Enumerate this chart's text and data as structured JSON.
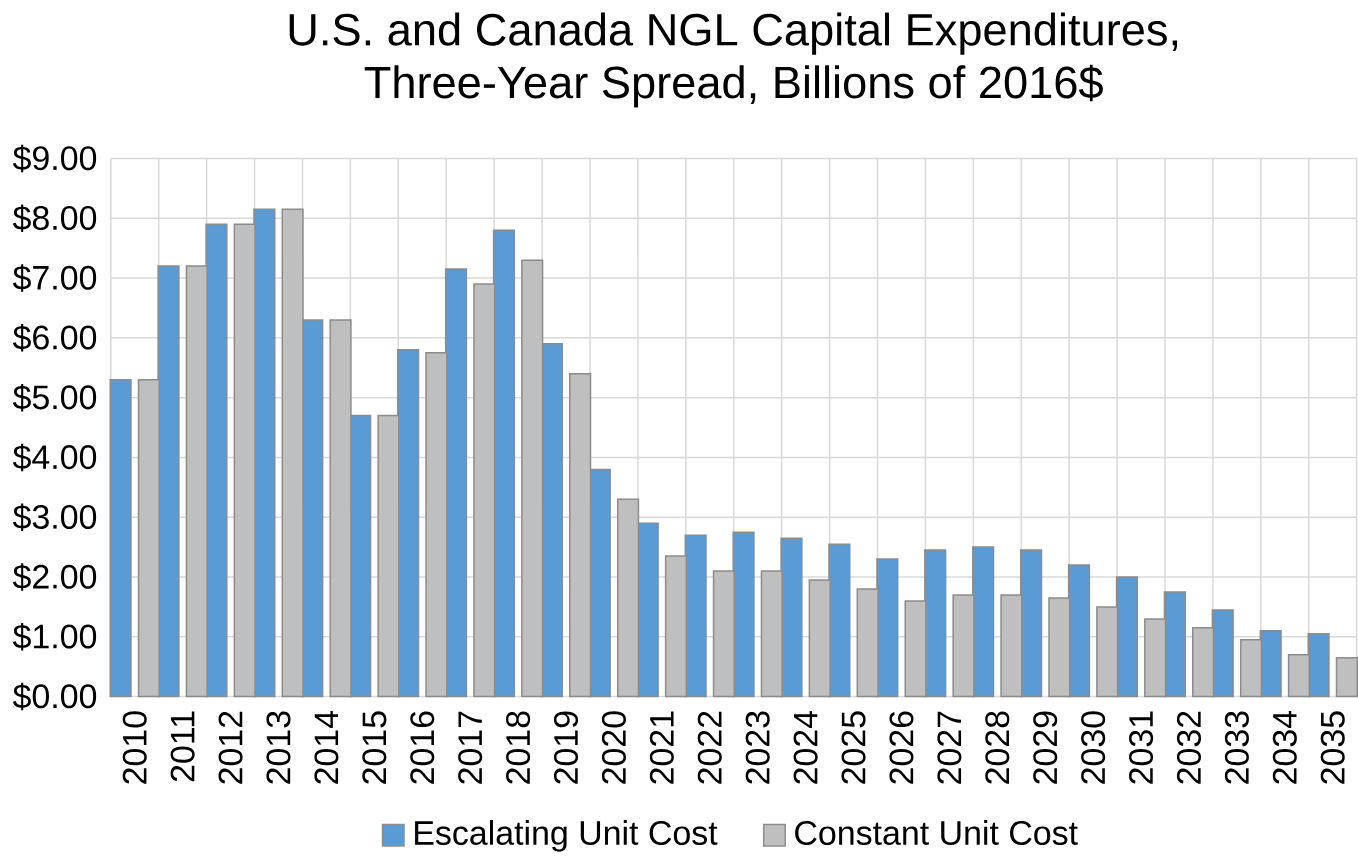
{
  "chart_data": {
    "type": "bar",
    "title": "U.S. and Canada NGL Capital Expenditures,\nThree-Year Spread, Billions of 2016$",
    "categories": [
      "2010",
      "2011",
      "2012",
      "2013",
      "2014",
      "2015",
      "2016",
      "2017",
      "2018",
      "2019",
      "2020",
      "2021",
      "2022",
      "2023",
      "2024",
      "2025",
      "2026",
      "2027",
      "2028",
      "2029",
      "2030",
      "2031",
      "2032",
      "2033",
      "2034",
      "2035"
    ],
    "series": [
      {
        "name": "Escalating Unit Cost",
        "color": "#5b9bd5",
        "values": [
          5.3,
          7.2,
          7.9,
          8.15,
          6.3,
          4.7,
          5.8,
          7.15,
          7.8,
          5.9,
          3.8,
          2.9,
          2.7,
          2.75,
          2.65,
          2.55,
          2.3,
          2.45,
          2.5,
          2.45,
          2.2,
          2.0,
          1.75,
          1.45,
          1.1,
          1.05
        ]
      },
      {
        "name": "Constant Unit Cost",
        "color": "#bfbfbf",
        "values": [
          5.3,
          7.2,
          7.9,
          8.15,
          6.3,
          4.7,
          5.75,
          6.9,
          7.3,
          5.4,
          3.3,
          2.35,
          2.1,
          2.1,
          1.95,
          1.8,
          1.6,
          1.7,
          1.7,
          1.65,
          1.5,
          1.3,
          1.15,
          0.95,
          0.7,
          0.65
        ]
      }
    ],
    "ylim": [
      0,
      9
    ],
    "yticks": [
      {
        "value": 0,
        "label": "$0.00"
      },
      {
        "value": 1,
        "label": "$1.00"
      },
      {
        "value": 2,
        "label": "$2.00"
      },
      {
        "value": 3,
        "label": "$3.00"
      },
      {
        "value": 4,
        "label": "$4.00"
      },
      {
        "value": 5,
        "label": "$5.00"
      },
      {
        "value": 6,
        "label": "$6.00"
      },
      {
        "value": 7,
        "label": "$7.00"
      },
      {
        "value": 8,
        "label": "$8.00"
      },
      {
        "value": 9,
        "label": "$9.00"
      }
    ],
    "grid": true,
    "legend": "bottom"
  }
}
